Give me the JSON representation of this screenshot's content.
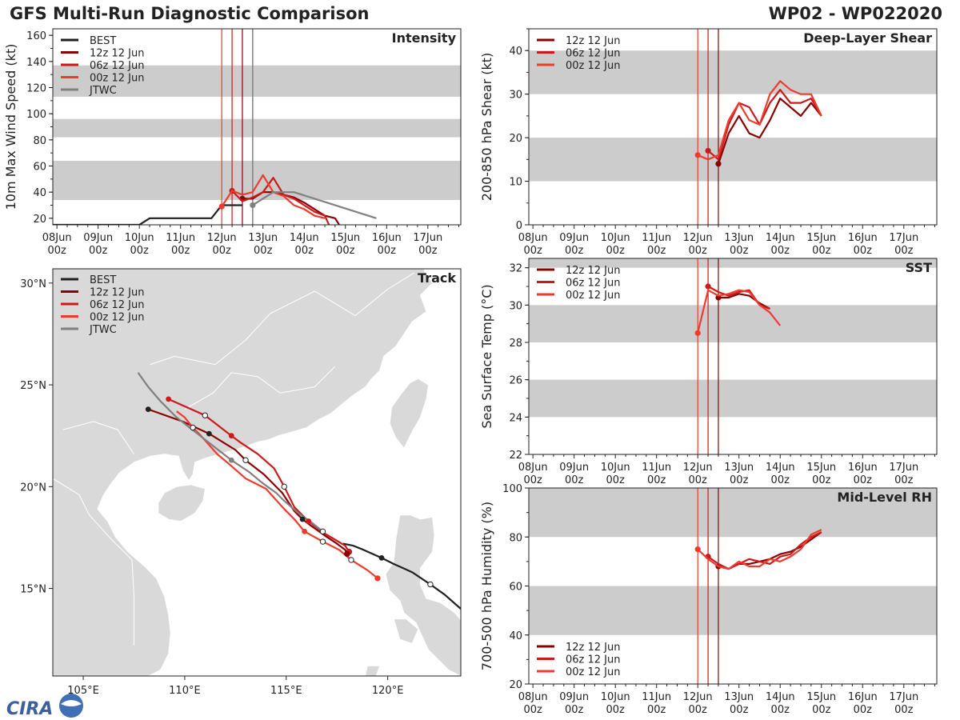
{
  "header": {
    "title": "GFS Multi-Run Diagnostic Comparison",
    "storm": "WP02 - WP022020"
  },
  "logo": {
    "text": "CIRA"
  },
  "colors": {
    "best": "#202020",
    "run12": "#8b0000",
    "run06": "#cc1a1a",
    "run00": "#ee3b2e",
    "jtwc": "#808080",
    "band": "#cccccc",
    "land": "#d9d9d9",
    "sea": "#ffffff"
  },
  "time_axis": {
    "labels": [
      [
        "08Jun",
        "00z"
      ],
      [
        "09Jun",
        "00z"
      ],
      [
        "10Jun",
        "00z"
      ],
      [
        "11Jun",
        "00z"
      ],
      [
        "12Jun",
        "00z"
      ],
      [
        "13Jun",
        "00z"
      ],
      [
        "14Jun",
        "00z"
      ],
      [
        "15Jun",
        "00z"
      ],
      [
        "16Jun",
        "00z"
      ],
      [
        "17Jun",
        "00z"
      ]
    ],
    "init_lines": [
      12.0,
      12.25,
      12.5
    ],
    "range": [
      7.9,
      17.8
    ]
  },
  "chart_data": [
    {
      "type": "line",
      "title": "Intensity",
      "ylabel": "10m Max Wind Speed (kt)",
      "ylim": [
        15,
        165
      ],
      "yticks": [
        20,
        40,
        60,
        80,
        100,
        120,
        140,
        160
      ],
      "bands": [
        [
          34,
          64
        ],
        [
          82,
          96
        ],
        [
          113,
          137
        ]
      ],
      "jtwc_line": 12.75,
      "legend": [
        "BEST",
        "12z 12 Jun",
        "06z 12 Jun",
        "00z 12 Jun",
        "JTWC"
      ],
      "series": [
        {
          "name": "BEST",
          "key": "best",
          "x": [
            7.87,
            8.0,
            8.25,
            8.5,
            8.75,
            9.0,
            9.25,
            9.5,
            9.75,
            10.0,
            10.25,
            10.5,
            10.75,
            11.0,
            11.25,
            11.5,
            11.75,
            12.0,
            12.25,
            12.5
          ],
          "y": [
            15,
            15,
            15,
            15,
            15,
            15,
            15,
            15,
            15,
            15,
            20,
            20,
            20,
            20,
            20,
            20,
            20,
            30,
            30,
            30
          ]
        },
        {
          "name": "12z 12 Jun",
          "key": "run12",
          "x": [
            12.5,
            12.75,
            13.0,
            13.25,
            13.5,
            13.75,
            14.0,
            14.25,
            14.5,
            14.75,
            14.85
          ],
          "y": [
            35,
            35,
            40,
            40,
            38,
            36,
            32,
            27,
            22,
            20,
            15
          ]
        },
        {
          "name": "06z 12 Jun",
          "key": "run06",
          "x": [
            12.25,
            12.5,
            12.75,
            13.0,
            13.25,
            13.5,
            13.75,
            14.0,
            14.25,
            14.5,
            14.6
          ],
          "y": [
            41,
            33,
            36,
            40,
            51,
            38,
            35,
            30,
            25,
            22,
            15
          ]
        },
        {
          "name": "00z 12 Jun",
          "key": "run00",
          "x": [
            12.0,
            12.25,
            12.5,
            12.75,
            13.0,
            13.25,
            13.5,
            13.75,
            14.0,
            14.25,
            14.5
          ],
          "y": [
            29,
            41,
            38,
            40,
            53,
            40,
            37,
            30,
            27,
            22,
            20
          ]
        },
        {
          "name": "JTWC",
          "key": "jtwc",
          "x": [
            12.75,
            13.0,
            13.25,
            13.75,
            15.75
          ],
          "y": [
            30,
            35,
            40,
            40,
            20
          ]
        }
      ]
    },
    {
      "type": "map",
      "title": "Track",
      "lon_range": [
        103.5,
        123.6
      ],
      "lat_range": [
        10.7,
        30.7
      ],
      "lon_ticks": [
        105,
        110,
        115,
        120
      ],
      "lon_tick_labels": [
        "105°E",
        "110°E",
        "115°E",
        "120°E"
      ],
      "lat_ticks": [
        15,
        20,
        25,
        30
      ],
      "lat_tick_labels": [
        "15°N",
        "20°N",
        "25°N",
        "30°N"
      ],
      "legend": [
        "BEST",
        "12z 12 Jun",
        "06z 12 Jun",
        "00z 12 Jun",
        "JTWC"
      ],
      "tracks": [
        {
          "name": "BEST",
          "key": "best",
          "lon": [
            123.6,
            122.8,
            122.1,
            121.2,
            120.3,
            119.7,
            118.8,
            118.3,
            117.8
          ],
          "lat": [
            14.0,
            14.7,
            15.2,
            15.8,
            16.2,
            16.5,
            16.9,
            17.1,
            17.2
          ],
          "open": [
            2
          ],
          "filled": [
            5
          ]
        },
        {
          "name": "12z 12 Jun",
          "key": "run12",
          "lon": [
            118.0,
            117.9,
            117.5,
            116.9,
            116.2,
            115.8,
            115.4,
            114.8,
            113.9,
            113.0,
            112.5,
            111.2,
            109.9,
            108.2
          ],
          "lat": [
            16.7,
            16.9,
            17.2,
            17.6,
            18.1,
            18.4,
            18.8,
            19.7,
            20.6,
            21.3,
            21.8,
            22.6,
            23.2,
            23.8
          ],
          "open": [
            0,
            9
          ],
          "filled": [
            5,
            11,
            13
          ]
        },
        {
          "name": "06z 12 Jun",
          "key": "run06",
          "lon": [
            118.1,
            117.9,
            117.4,
            116.9,
            116.1,
            115.4,
            114.9,
            114.4,
            113.6,
            112.7,
            112.3,
            111.0,
            109.2
          ],
          "lat": [
            16.8,
            17.1,
            17.4,
            17.7,
            18.3,
            19.0,
            20.0,
            20.9,
            21.6,
            22.2,
            22.5,
            23.5,
            24.3
          ],
          "open": [
            0,
            6,
            11
          ],
          "filled": [
            4,
            10,
            12
          ]
        },
        {
          "name": "00z 12 Jun",
          "key": "run00",
          "lon": [
            119.5,
            119.0,
            118.2,
            117.6,
            116.8,
            115.9,
            115.4,
            114.9,
            114.0,
            113.0,
            112.2,
            111.6,
            110.8,
            110.4,
            110.0,
            109.6
          ],
          "lat": [
            15.5,
            15.9,
            16.4,
            16.9,
            17.3,
            17.8,
            18.4,
            18.9,
            19.9,
            20.4,
            21.1,
            21.6,
            22.5,
            22.9,
            23.4,
            23.7
          ],
          "open": [
            2,
            4,
            13
          ],
          "filled": [
            0,
            5
          ]
        },
        {
          "name": "JTWC",
          "key": "jtwc",
          "lon": [
            116.8,
            116.3,
            115.6,
            114.9,
            114.5,
            113.8,
            113.2,
            112.3,
            111.4,
            110.5,
            109.6,
            108.8,
            108.2,
            107.7
          ],
          "lat": [
            17.8,
            18.2,
            18.7,
            19.3,
            19.7,
            20.2,
            20.7,
            21.3,
            22.0,
            22.7,
            23.4,
            24.2,
            24.9,
            25.6
          ],
          "open": [
            0
          ],
          "filled": [
            7
          ]
        }
      ]
    },
    {
      "type": "line",
      "title": "Deep-Layer Shear",
      "ylabel": "200-850 hPa Shear (kt)",
      "ylim": [
        0,
        45
      ],
      "yticks": [
        0,
        10,
        20,
        30,
        40
      ],
      "bands": [
        [
          10,
          20
        ],
        [
          30,
          40
        ]
      ],
      "legend": [
        "12z 12 Jun",
        "06z 12 Jun",
        "00z 12 Jun"
      ],
      "series": [
        {
          "name": "12z 12 Jun",
          "key": "run12",
          "x": [
            12.5,
            12.75,
            13.0,
            13.25,
            13.5,
            13.75,
            14.0,
            14.25,
            14.5,
            14.75,
            15.0
          ],
          "y": [
            14,
            21,
            25,
            21,
            20,
            24,
            29,
            27,
            25,
            28,
            25
          ]
        },
        {
          "name": "06z 12 Jun",
          "key": "run06",
          "x": [
            12.25,
            12.5,
            12.75,
            13.0,
            13.25,
            13.5,
            13.75,
            14.0,
            14.25,
            14.5,
            14.75,
            15.0
          ],
          "y": [
            17,
            15,
            23,
            28,
            27,
            23,
            28,
            31,
            28,
            28,
            29,
            25
          ]
        },
        {
          "name": "00z 12 Jun",
          "key": "run00",
          "x": [
            12.0,
            12.25,
            12.5,
            12.75,
            13.0,
            13.25,
            13.5,
            13.75,
            14.0,
            14.25,
            14.5,
            14.75,
            15.0
          ],
          "y": [
            16,
            15,
            16,
            24,
            28,
            24,
            23,
            30,
            33,
            31,
            30,
            30,
            25
          ]
        }
      ]
    },
    {
      "type": "line",
      "title": "SST",
      "ylabel": "Sea Surface Temp (°C)",
      "ylim": [
        22,
        32.5
      ],
      "yticks": [
        22,
        24,
        26,
        28,
        30,
        32
      ],
      "bands": [
        [
          24,
          26
        ],
        [
          28,
          30
        ],
        [
          32,
          34
        ]
      ],
      "legend": [
        "12z 12 Jun",
        "06z 12 Jun",
        "00z 12 Jun"
      ],
      "series": [
        {
          "name": "12z 12 Jun",
          "key": "run12",
          "x": [
            12.5,
            12.75,
            13.0,
            13.25,
            13.5,
            13.75
          ],
          "y": [
            30.4,
            30.4,
            30.6,
            30.5,
            30.1,
            29.8
          ]
        },
        {
          "name": "06z 12 Jun",
          "key": "run06",
          "x": [
            12.25,
            12.5,
            12.75,
            13.0,
            13.25,
            13.5,
            13.75
          ],
          "y": [
            31.0,
            30.7,
            30.5,
            30.7,
            30.8,
            30.0,
            29.8
          ]
        },
        {
          "name": "00z 12 Jun",
          "key": "run00",
          "x": [
            12.0,
            12.25,
            12.5,
            12.75,
            13.0,
            13.25,
            13.5,
            13.75,
            14.0
          ],
          "y": [
            28.5,
            30.8,
            30.5,
            30.6,
            30.8,
            30.7,
            30.0,
            29.6,
            28.9
          ]
        }
      ]
    },
    {
      "type": "line",
      "title": "Mid-Level RH",
      "ylabel": "700-500 hPa Humidity (%)",
      "ylim": [
        20,
        100
      ],
      "yticks": [
        20,
        40,
        60,
        80,
        100
      ],
      "bands": [
        [
          40,
          60
        ],
        [
          80,
          100
        ]
      ],
      "legend": [
        "12z 12 Jun",
        "06z 12 Jun",
        "00z 12 Jun"
      ],
      "series": [
        {
          "name": "12z 12 Jun",
          "key": "run12",
          "x": [
            12.5,
            12.75,
            13.0,
            13.25,
            13.5,
            13.75,
            14.0,
            14.25,
            14.5,
            14.75,
            15.0
          ],
          "y": [
            68,
            67,
            69,
            69,
            70,
            71,
            73,
            74,
            76,
            79,
            82
          ]
        },
        {
          "name": "06z 12 Jun",
          "key": "run06",
          "x": [
            12.25,
            12.5,
            12.75,
            13.0,
            13.25,
            13.5,
            13.75,
            14.0,
            14.25,
            14.5,
            14.75,
            15.0
          ],
          "y": [
            72,
            69,
            67,
            69,
            71,
            70,
            69,
            72,
            73,
            77,
            80,
            82
          ]
        },
        {
          "name": "00z 12 Jun",
          "key": "run00",
          "x": [
            12.0,
            12.25,
            12.5,
            12.75,
            13.0,
            13.25,
            13.5,
            13.75,
            14.0,
            14.25,
            14.5,
            14.75,
            15.0
          ],
          "y": [
            75,
            71,
            68,
            67,
            70,
            68,
            68,
            71,
            70,
            72,
            75,
            81,
            83
          ]
        }
      ]
    }
  ]
}
